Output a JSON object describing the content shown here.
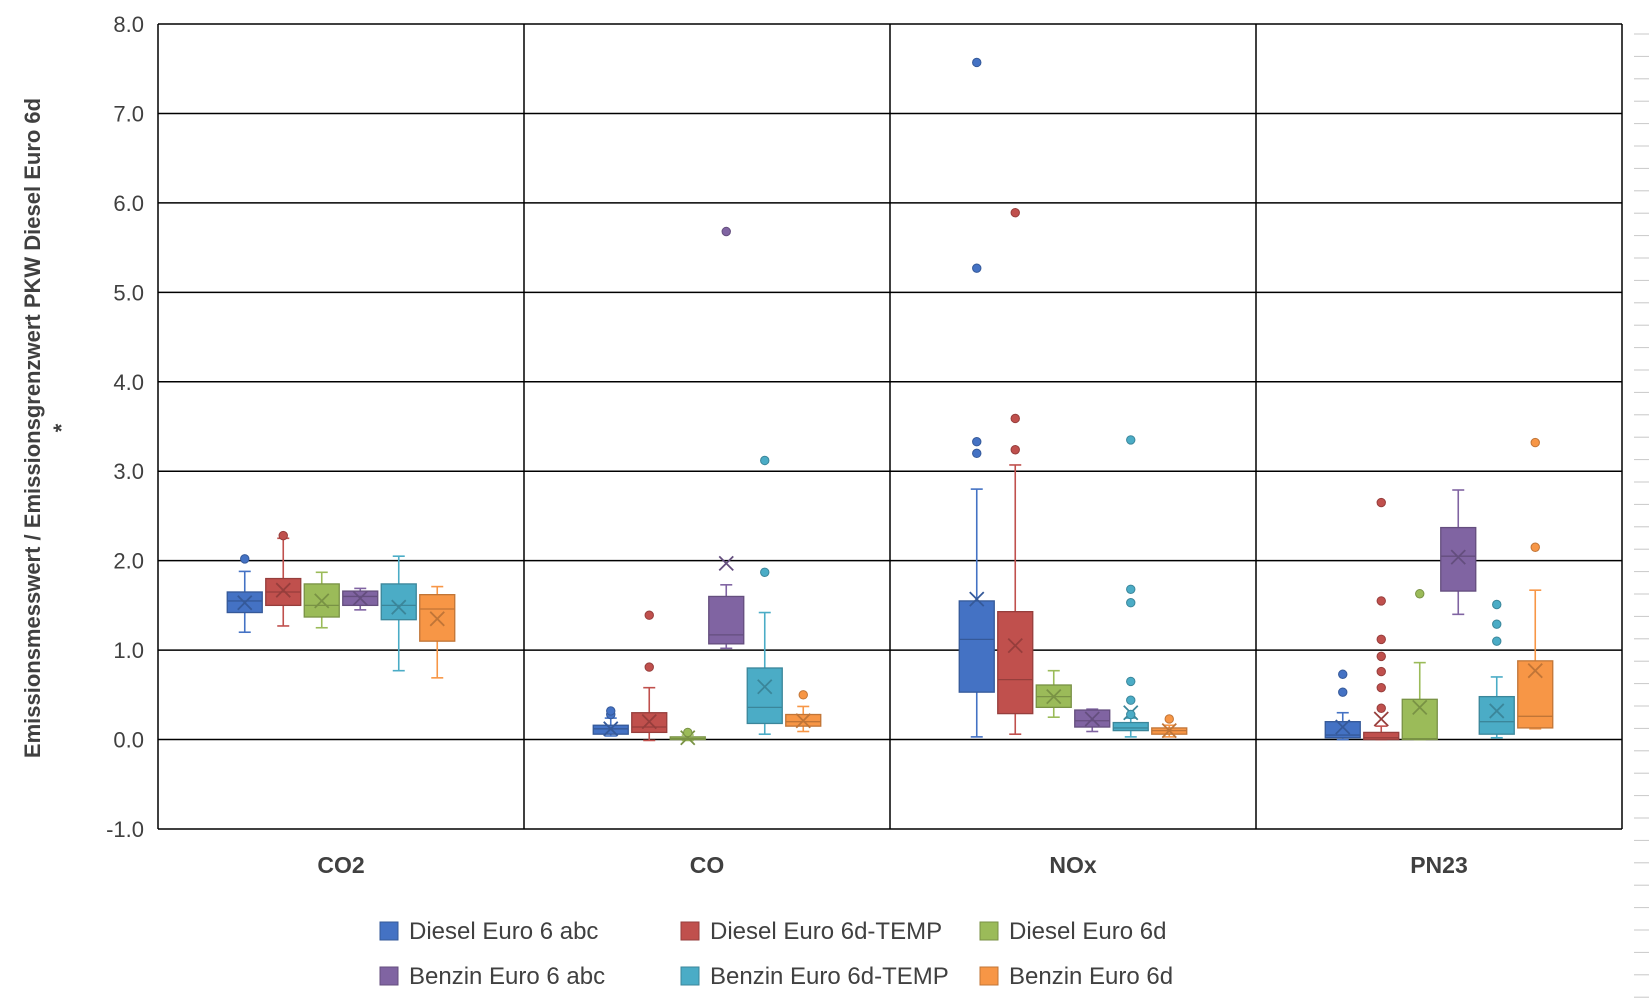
{
  "chart_data": {
    "type": "boxplot",
    "ylabel": "Emissionsmesswert / Emissionsgrenzwert PKW Diesel Euro 6d *",
    "ylim": [
      -1.0,
      8.0
    ],
    "yticks": [
      "-1.0",
      "0.0",
      "1.0",
      "2.0",
      "3.0",
      "4.0",
      "5.0",
      "6.0",
      "7.0",
      "8.0"
    ],
    "grid": true,
    "legend_position": "bottom",
    "categories": [
      "CO2",
      "CO",
      "NOx",
      "PN23"
    ],
    "series": [
      {
        "name": "Diesel Euro 6 abc",
        "color": "#4472C4",
        "boxes": [
          {
            "min": 1.2,
            "q1": 1.42,
            "median": 1.55,
            "q3": 1.65,
            "max": 1.88,
            "mean": 1.53,
            "outliers": [
              2.02
            ]
          },
          {
            "min": 0.04,
            "q1": 0.06,
            "median": 0.12,
            "q3": 0.16,
            "max": 0.24,
            "mean": 0.12,
            "outliers": [
              0.28,
              0.32
            ]
          },
          {
            "min": 0.03,
            "q1": 0.53,
            "median": 1.12,
            "q3": 1.55,
            "max": 2.8,
            "mean": 1.57,
            "outliers": [
              3.2,
              3.33,
              5.27,
              7.57
            ]
          },
          {
            "min": 0.0,
            "q1": 0.02,
            "median": 0.05,
            "q3": 0.2,
            "max": 0.3,
            "mean": 0.14,
            "outliers": [
              0.53,
              0.73
            ]
          }
        ]
      },
      {
        "name": "Diesel Euro 6d-TEMP",
        "color": "#C0504D",
        "boxes": [
          {
            "min": 1.27,
            "q1": 1.5,
            "median": 1.65,
            "q3": 1.8,
            "max": 2.25,
            "mean": 1.67,
            "outliers": [
              2.28
            ]
          },
          {
            "min": -0.01,
            "q1": 0.08,
            "median": 0.14,
            "q3": 0.3,
            "max": 0.58,
            "mean": 0.2,
            "outliers": [
              0.81,
              1.39
            ]
          },
          {
            "min": 0.06,
            "q1": 0.29,
            "median": 0.67,
            "q3": 1.43,
            "max": 3.07,
            "mean": 1.05,
            "outliers": [
              3.24,
              3.59,
              5.89
            ]
          },
          {
            "min": 0.0,
            "q1": 0.0,
            "median": 0.02,
            "q3": 0.08,
            "max": 0.15,
            "mean": 0.23,
            "outliers": [
              0.35,
              0.58,
              0.76,
              0.93,
              1.12,
              1.55,
              2.65
            ]
          }
        ]
      },
      {
        "name": "Diesel Euro 6d",
        "color": "#9BBB59",
        "boxes": [
          {
            "min": 1.25,
            "q1": 1.37,
            "median": 1.5,
            "q3": 1.74,
            "max": 1.87,
            "mean": 1.55,
            "outliers": []
          },
          {
            "min": -0.01,
            "q1": 0.0,
            "median": 0.01,
            "q3": 0.03,
            "max": 0.05,
            "mean": 0.02,
            "outliers": [
              0.08
            ]
          },
          {
            "min": 0.25,
            "q1": 0.36,
            "median": 0.48,
            "q3": 0.61,
            "max": 0.77,
            "mean": 0.48,
            "outliers": []
          },
          {
            "min": 0.0,
            "q1": 0.0,
            "median": 0.01,
            "q3": 0.45,
            "max": 0.86,
            "mean": 0.36,
            "outliers": [
              1.63
            ]
          }
        ]
      },
      {
        "name": "Benzin Euro 6 abc",
        "color": "#8064A2",
        "boxes": [
          {
            "min": 1.45,
            "q1": 1.5,
            "median": 1.6,
            "q3": 1.66,
            "max": 1.69,
            "mean": 1.58,
            "outliers": []
          },
          {
            "min": 1.02,
            "q1": 1.07,
            "median": 1.17,
            "q3": 1.6,
            "max": 1.73,
            "mean": 1.97,
            "outliers": [
              5.68
            ]
          },
          {
            "min": 0.09,
            "q1": 0.14,
            "median": 0.21,
            "q3": 0.33,
            "max": 0.34,
            "mean": 0.23,
            "outliers": []
          },
          {
            "min": 1.4,
            "q1": 1.66,
            "median": 2.05,
            "q3": 2.37,
            "max": 2.79,
            "mean": 2.04,
            "outliers": []
          }
        ]
      },
      {
        "name": "Benzin Euro 6d-TEMP",
        "color": "#4BACC6",
        "boxes": [
          {
            "min": 0.77,
            "q1": 1.34,
            "median": 1.5,
            "q3": 1.74,
            "max": 2.05,
            "mean": 1.48,
            "outliers": []
          },
          {
            "min": 0.06,
            "q1": 0.18,
            "median": 0.36,
            "q3": 0.8,
            "max": 1.42,
            "mean": 0.59,
            "outliers": [
              1.87,
              3.12
            ]
          },
          {
            "min": 0.03,
            "q1": 0.1,
            "median": 0.13,
            "q3": 0.19,
            "max": 0.24,
            "mean": 0.3,
            "outliers": [
              0.28,
              0.44,
              0.65,
              1.53,
              1.68,
              3.35
            ]
          },
          {
            "min": 0.02,
            "q1": 0.06,
            "median": 0.2,
            "q3": 0.48,
            "max": 0.7,
            "mean": 0.32,
            "outliers": [
              1.1,
              1.29,
              1.51
            ]
          }
        ]
      },
      {
        "name": "Benzin Euro 6d",
        "color": "#F79646",
        "boxes": [
          {
            "min": 0.69,
            "q1": 1.1,
            "median": 1.46,
            "q3": 1.62,
            "max": 1.71,
            "mean": 1.35,
            "outliers": []
          },
          {
            "min": 0.09,
            "q1": 0.15,
            "median": 0.2,
            "q3": 0.28,
            "max": 0.37,
            "mean": 0.21,
            "outliers": [
              0.5
            ]
          },
          {
            "min": 0.03,
            "q1": 0.06,
            "median": 0.1,
            "q3": 0.13,
            "max": 0.16,
            "mean": 0.1,
            "outliers": [
              0.23
            ]
          },
          {
            "min": 0.12,
            "q1": 0.13,
            "median": 0.26,
            "q3": 0.88,
            "max": 1.67,
            "mean": 0.77,
            "outliers": [
              2.15,
              3.32
            ]
          }
        ]
      }
    ]
  }
}
